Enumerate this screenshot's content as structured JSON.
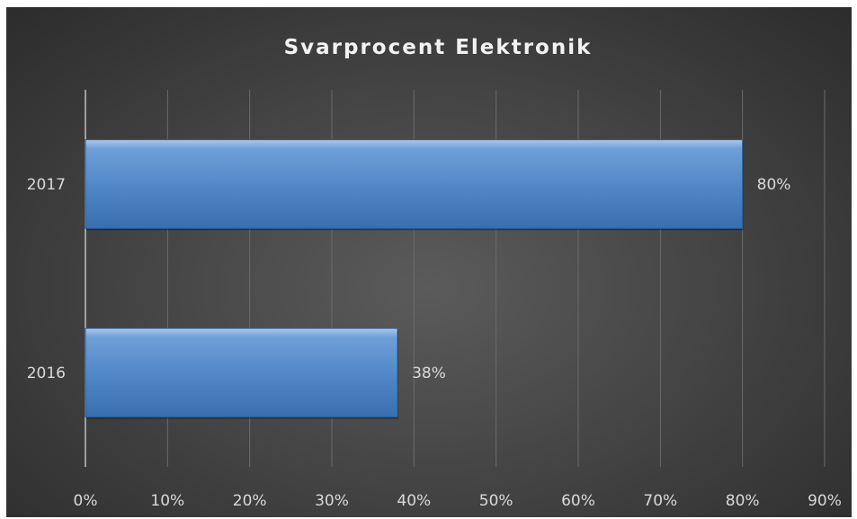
{
  "chart_data": {
    "type": "bar",
    "orientation": "horizontal",
    "title": "Svarprocent Elektronik",
    "categories": [
      "2017",
      "2016"
    ],
    "values": [
      80,
      38
    ],
    "data_labels": [
      "80%",
      "38%"
    ],
    "x_tick_labels": [
      "0%",
      "10%",
      "20%",
      "30%",
      "40%",
      "50%",
      "60%",
      "70%",
      "80%",
      "90%"
    ],
    "xlim": [
      0,
      90
    ],
    "x_tick_step": 10,
    "grid": true,
    "legend": "none",
    "colors": {
      "bar": "#4f86c6",
      "bar_light": "#8bb4e6",
      "bar_dark": "#3366a8",
      "grid": "#6a6a6a",
      "axis": "#bfbfbf"
    }
  }
}
